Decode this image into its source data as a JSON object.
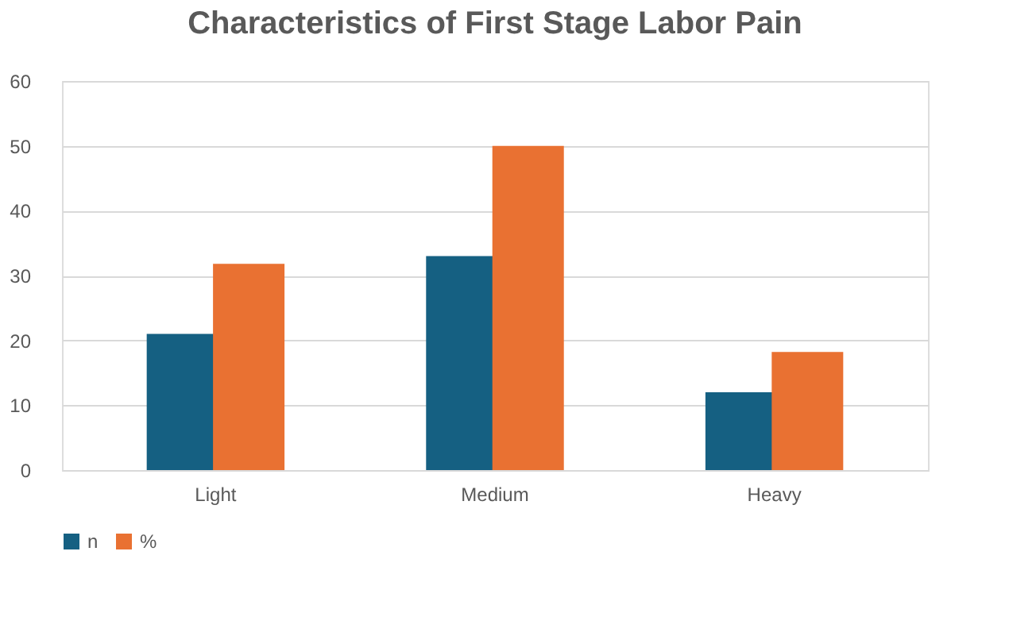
{
  "chart_data": {
    "type": "bar",
    "title": "Characteristics of First Stage Labor Pain",
    "categories": [
      "Light",
      "Medium",
      "Heavy"
    ],
    "series": [
      {
        "name": "n",
        "color": "#156082",
        "values": [
          21,
          33,
          12
        ]
      },
      {
        "name": "%",
        "color": "#e97132",
        "values": [
          31.8,
          50,
          18.2
        ]
      }
    ],
    "ylim": [
      0,
      60
    ],
    "yticks": [
      0,
      10,
      20,
      30,
      40,
      50,
      60
    ],
    "grid": "y",
    "legend": "bottom"
  }
}
